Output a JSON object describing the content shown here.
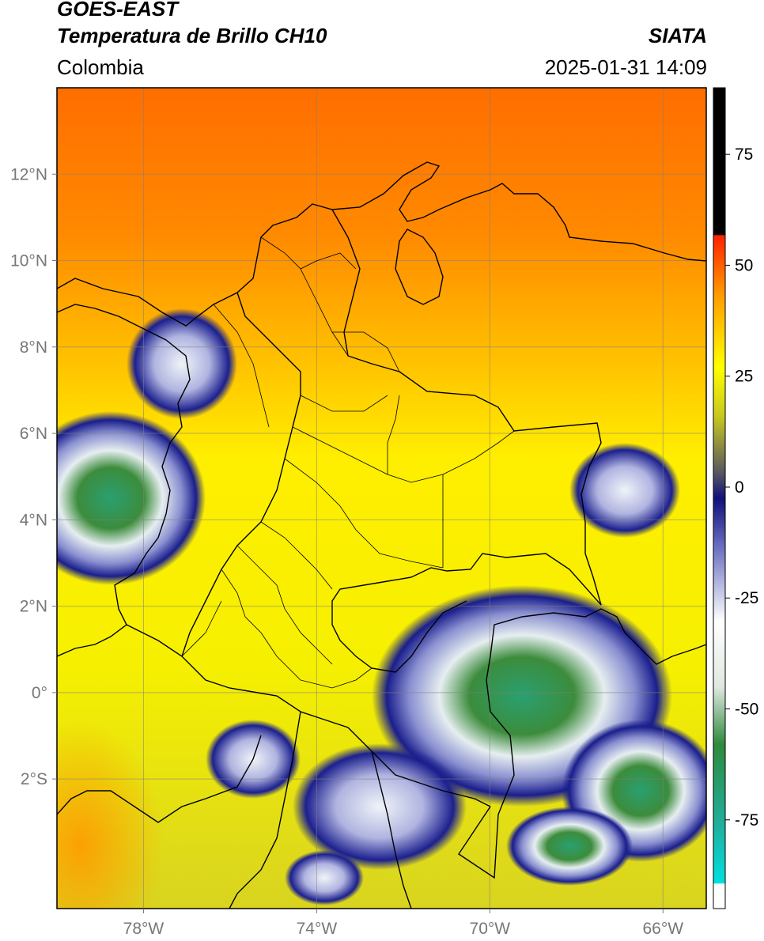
{
  "header": {
    "satellite": "GOES-EAST",
    "product": "Temperatura de Brillo CH10",
    "agency": "SIATA",
    "region": "Colombia",
    "timestamp": "2025-01-31 14:09"
  },
  "map": {
    "lon_range": [
      -80,
      -65
    ],
    "lat_range": [
      -5,
      14
    ],
    "lon_ticks": [
      {
        "value": -78,
        "label": "78°W"
      },
      {
        "value": -74,
        "label": "74°W"
      },
      {
        "value": -70,
        "label": "70°W"
      },
      {
        "value": -66,
        "label": "66°W"
      }
    ],
    "lat_ticks": [
      {
        "value": 12,
        "label": "12°N"
      },
      {
        "value": 10,
        "label": "10°N"
      },
      {
        "value": 8,
        "label": "8°N"
      },
      {
        "value": 6,
        "label": "6°N"
      },
      {
        "value": 4,
        "label": "4°N"
      },
      {
        "value": 2,
        "label": "2°N"
      },
      {
        "value": 0,
        "label": "0°"
      },
      {
        "value": -2,
        "label": "2°S"
      }
    ],
    "gridlines": true
  },
  "colorbar": {
    "range": [
      -95,
      90
    ],
    "ticks": [
      {
        "value": 75,
        "label": "75"
      },
      {
        "value": 50,
        "label": "50"
      },
      {
        "value": 25,
        "label": "25"
      },
      {
        "value": 0,
        "label": "0"
      },
      {
        "value": -25,
        "label": "-25"
      },
      {
        "value": -50,
        "label": "-50"
      },
      {
        "value": -75,
        "label": "-75"
      }
    ]
  }
}
